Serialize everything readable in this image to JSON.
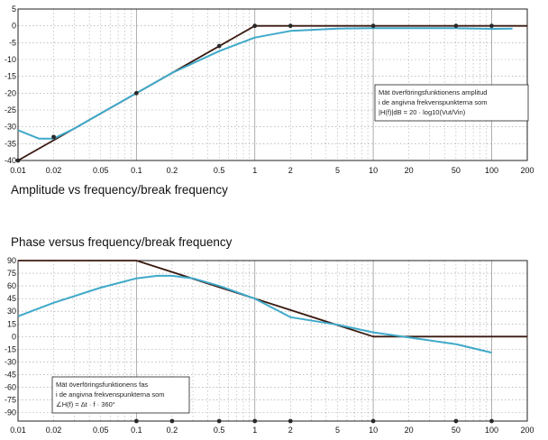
{
  "captions": {
    "amplitude": "Amplitude vs frequency/break frequency",
    "phase": "Phase versus frequency/break frequency"
  },
  "colors": {
    "grid": "#9a9a9a",
    "frame": "#222222",
    "asymptote": "#3a1a10",
    "measured": "#3fa9c9",
    "marker": "#2a2a2a"
  },
  "chart_data": [
    {
      "type": "line",
      "scale_x": "log",
      "xlim": [
        0.01,
        200
      ],
      "ylim": [
        -40,
        5
      ],
      "x_ticks": [
        0.01,
        0.02,
        0.05,
        0.1,
        0.2,
        0.5,
        1,
        2,
        5,
        10,
        20,
        50,
        100,
        200
      ],
      "x_tick_labels": [
        "0.01",
        "0.02",
        "0.05",
        "0.1",
        "0.2",
        "0.5",
        "1",
        "2",
        "5",
        "10",
        "20",
        "50",
        "100",
        "200"
      ],
      "y_ticks": [
        5,
        0,
        -5,
        -10,
        -15,
        -20,
        -25,
        -30,
        -35,
        -40
      ],
      "y_tick_labels": [
        "5",
        "0",
        "-5",
        "-10",
        "-15",
        "-20",
        "-25",
        "-30",
        "-35",
        "-40"
      ],
      "grid": true,
      "series": [
        {
          "style": "asymptote",
          "x": [
            0.01,
            1,
            200
          ],
          "y": [
            -40,
            0,
            0
          ]
        },
        {
          "style": "measured",
          "x": [
            0.01,
            0.015,
            0.02,
            0.03,
            0.05,
            0.1,
            0.2,
            0.5,
            1,
            2,
            5,
            10,
            50,
            100,
            150
          ],
          "y": [
            -31,
            -33.5,
            -33.5,
            -30.5,
            -26,
            -20,
            -14,
            -7.5,
            -3.5,
            -1.5,
            -0.8,
            -0.7,
            -0.7,
            -0.9,
            -0.8
          ]
        },
        {
          "style": "markers",
          "x": [
            0.01,
            0.02,
            0.1,
            0.5,
            1,
            2,
            10,
            50,
            100
          ],
          "y": [
            -40,
            -33,
            -20,
            -6,
            0,
            0,
            0,
            0,
            0
          ]
        }
      ],
      "annotation": [
        "Mät överföringsfunktionens amplitud",
        "i de angivna frekvenspunkterna som",
        "|H(f)|dB = 20 · log10(Vut/Vin)"
      ]
    },
    {
      "type": "line",
      "scale_x": "log",
      "xlim": [
        0.01,
        200
      ],
      "ylim": [
        -100,
        90
      ],
      "x_ticks": [
        0.01,
        0.02,
        0.05,
        0.1,
        0.2,
        0.5,
        1,
        2,
        5,
        10,
        20,
        50,
        100,
        200
      ],
      "x_tick_labels": [
        "0.01",
        "0.02",
        "0.05",
        "0.1",
        "0.2",
        "0.5",
        "1",
        "2",
        "5",
        "10",
        "20",
        "50",
        "100",
        "200"
      ],
      "y_ticks": [
        90,
        75,
        60,
        45,
        30,
        15,
        0,
        -15,
        -30,
        -45,
        -60,
        -75,
        -90
      ],
      "y_tick_labels": [
        "90",
        "75",
        "60",
        "45",
        "30",
        "15",
        "0",
        "-15",
        "-30",
        "-45",
        "-60",
        "-75",
        "-90"
      ],
      "grid": true,
      "series": [
        {
          "style": "asymptote",
          "x": [
            0.01,
            0.1,
            10,
            200
          ],
          "y": [
            90,
            90,
            0,
            0
          ]
        },
        {
          "style": "measured",
          "x": [
            0.01,
            0.02,
            0.05,
            0.1,
            0.15,
            0.2,
            0.3,
            0.5,
            1,
            2,
            5,
            10,
            20,
            50,
            100
          ],
          "y": [
            24,
            40,
            58,
            69,
            72,
            72,
            69,
            60,
            45,
            23,
            14,
            5,
            -1,
            -9,
            -19
          ]
        },
        {
          "style": "markers",
          "x": [
            0.1,
            0.2,
            0.5,
            1,
            2,
            10,
            50,
            100
          ],
          "y": [
            -100,
            -100,
            -100,
            -100,
            -100,
            -100,
            -100,
            -100
          ]
        }
      ],
      "annotation": [
        "Mät överföringsfunktionens fas",
        "i de angivna frekvenspunkterna som",
        "∠H(f) = Δt · f · 360°"
      ]
    }
  ]
}
